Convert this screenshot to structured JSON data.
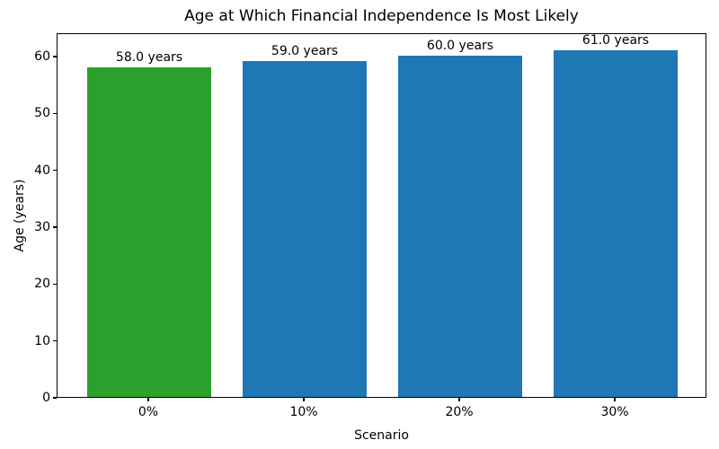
{
  "chart_data": {
    "type": "bar",
    "title": "Age at Which Financial Independence Is Most Likely",
    "xlabel": "Scenario",
    "ylabel": "Age (years)",
    "categories": [
      "0%",
      "10%",
      "20%",
      "30%"
    ],
    "values": [
      58.0,
      59.0,
      60.0,
      61.0
    ],
    "bar_labels": [
      "58.0 years",
      "59.0 years",
      "60.0 years",
      "61.0 years"
    ],
    "bar_colors": [
      "#2ca02c",
      "#1f77b4",
      "#1f77b4",
      "#1f77b4"
    ],
    "ylim": [
      0,
      64.1
    ],
    "yticks": [
      0,
      10,
      20,
      30,
      40,
      50,
      60
    ],
    "grid": false,
    "legend_position": "none",
    "background_color": "#ffffff",
    "text_color": "#000000"
  }
}
